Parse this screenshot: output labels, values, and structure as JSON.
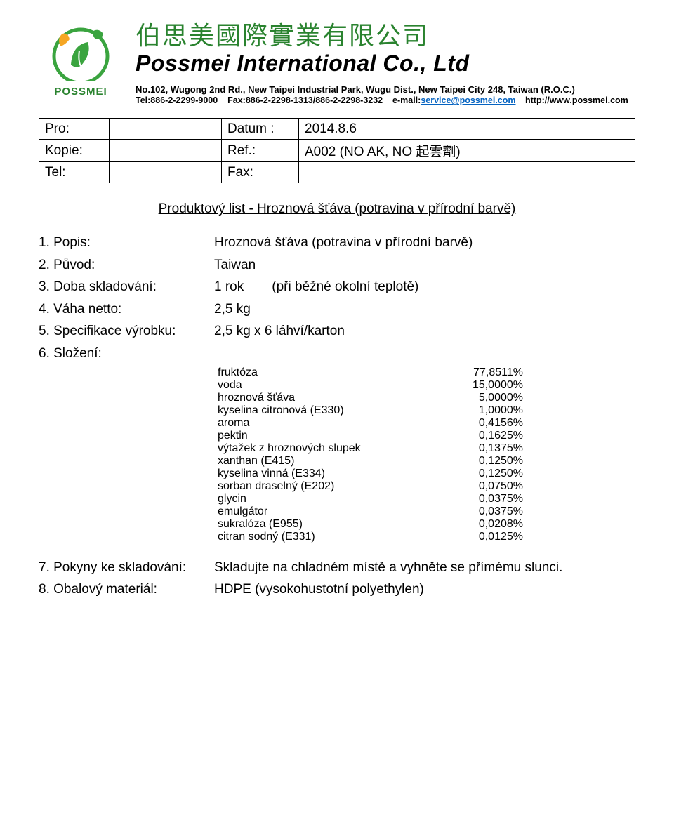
{
  "company": {
    "logo_sub": "POSSMEI",
    "logo_colors": {
      "leaf": "#3aa43f",
      "leaf_dark": "#2a832f",
      "accent": "#f5a623"
    },
    "cn_name": "伯思美國際實業有限公司",
    "en_name": "Possmei International Co., Ltd",
    "address": "No.102, Wugong 2nd Rd., New Taipei Industrial Park, Wugu Dist., New Taipei City 248, Taiwan (R.O.C.)",
    "tel": "Tel:886-2-2299-9000",
    "fax": "Fax:886-2-2298-1313/886-2-2298-3232",
    "email_label": "e-mail:",
    "email": "service@possmei.com",
    "url": "http://www.possmei.com"
  },
  "meta": {
    "rows": [
      {
        "l1": "Pro:",
        "v1": "",
        "l2": "Datum :",
        "v2": "2014.8.6"
      },
      {
        "l1": "Kopie:",
        "v1": "",
        "l2": "Ref.:",
        "v2": "A002 (NO AK, NO 起雲劑)"
      },
      {
        "l1": "Tel:",
        "v1": "",
        "l2": "Fax:",
        "v2": ""
      }
    ]
  },
  "title": "Produktový list - Hroznová šťáva (potravina v přírodní barvě)",
  "specs": [
    {
      "n": "1.",
      "label": "Popis:",
      "value": "Hroznová šťáva (potravina v přírodní barvě)"
    },
    {
      "n": "2.",
      "label": "Původ:",
      "value": "Taiwan"
    },
    {
      "n": "3.",
      "label": "Doba skladování:",
      "value": "1 rok",
      "aux": "(při běžné okolní teplotě)"
    },
    {
      "n": "4.",
      "label": "Váha netto:",
      "value": "2,5 kg"
    },
    {
      "n": "5.",
      "label": "Specifikace výrobku:",
      "value": "2,5 kg x 6 láhví/karton"
    },
    {
      "n": "6.",
      "label": "Složení:",
      "value": ""
    }
  ],
  "ingredients": [
    {
      "name": "fruktóza",
      "pct": "77,8511%"
    },
    {
      "name": "voda",
      "pct": "15,0000%"
    },
    {
      "name": "hroznová šťáva",
      "pct": "5,0000%"
    },
    {
      "name": "kyselina citronová (E330)",
      "pct": "1,0000%"
    },
    {
      "name": "aroma",
      "pct": "0,4156%"
    },
    {
      "name": "pektin",
      "pct": "0,1625%"
    },
    {
      "name": "výtažek z hroznových slupek",
      "pct": "0,1375%"
    },
    {
      "name": "xanthan (E415)",
      "pct": "0,1250%"
    },
    {
      "name": "kyselina vinná (E334)",
      "pct": "0,1250%"
    },
    {
      "name": "sorban draselný (E202)",
      "pct": "0,0750%"
    },
    {
      "name": "glycin",
      "pct": "0,0375%"
    },
    {
      "name": "emulgátor",
      "pct": "0,0375%"
    },
    {
      "name": "sukralóza (E955)",
      "pct": "0,0208%"
    },
    {
      "name": "citran sodný (E331)",
      "pct": "0,0125%"
    }
  ],
  "footer": [
    {
      "n": "7.",
      "label": "Pokyny ke skladování:",
      "value": "Skladujte na chladném místě a vyhněte se přímému slunci."
    },
    {
      "n": "8.",
      "label": "Obalový materiál:",
      "value": "HDPE (vysokohustotní polyethylen)"
    }
  ]
}
